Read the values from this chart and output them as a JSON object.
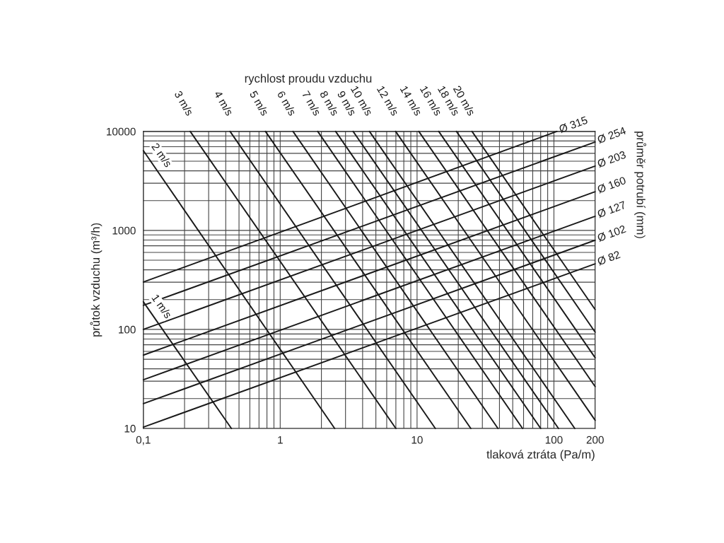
{
  "chart_data": {
    "type": "line",
    "log": "xy",
    "grid": true,
    "marker": "none",
    "line_style": "solid",
    "xlabel": "tlaková ztráta (Pa/m)",
    "ylabel": "průtok vzduchu (m³/h)",
    "annotations": [
      "rychlost proudu vzduchu",
      "průměr potrubí (mm)"
    ],
    "xlim": [
      0.1,
      200
    ],
    "ylim": [
      10,
      10000
    ],
    "xticks": [
      {
        "value": 0.1,
        "label": "0,1"
      },
      {
        "value": 0.2,
        "label": null
      },
      {
        "value": 0.3,
        "label": null
      },
      {
        "value": 0.4,
        "label": null
      },
      {
        "value": 0.5,
        "label": null
      },
      {
        "value": 0.6,
        "label": null
      },
      {
        "value": 0.7,
        "label": null
      },
      {
        "value": 0.8,
        "label": null
      },
      {
        "value": 0.9,
        "label": null
      },
      1,
      {
        "value": 2,
        "label": null
      },
      {
        "value": 3,
        "label": null
      },
      {
        "value": 4,
        "label": null
      },
      {
        "value": 5,
        "label": null
      },
      {
        "value": 6,
        "label": null
      },
      {
        "value": 7,
        "label": null
      },
      {
        "value": 8,
        "label": null
      },
      {
        "value": 9,
        "label": null
      },
      10,
      {
        "value": 20,
        "label": null
      },
      {
        "value": 30,
        "label": null
      },
      {
        "value": 40,
        "label": null
      },
      {
        "value": 50,
        "label": null
      },
      {
        "value": 60,
        "label": null
      },
      {
        "value": 70,
        "label": null
      },
      {
        "value": 80,
        "label": null
      },
      {
        "value": 90,
        "label": null
      },
      100,
      200
    ],
    "yticks": [
      10,
      {
        "value": 20,
        "label": null
      },
      {
        "value": 30,
        "label": null
      },
      {
        "value": 40,
        "label": null
      },
      {
        "value": 50,
        "label": null
      },
      {
        "value": 60,
        "label": null
      },
      {
        "value": 70,
        "label": null
      },
      {
        "value": 80,
        "label": null
      },
      {
        "value": 90,
        "label": null
      },
      100,
      {
        "value": 200,
        "label": null
      },
      {
        "value": 300,
        "label": null
      },
      {
        "value": 400,
        "label": null
      },
      {
        "value": 500,
        "label": null
      },
      {
        "value": 600,
        "label": null
      },
      {
        "value": 700,
        "label": null
      },
      {
        "value": 800,
        "label": null
      },
      {
        "value": 900,
        "label": null
      },
      1000,
      {
        "value": 2000,
        "label": null
      },
      {
        "value": 3000,
        "label": null
      },
      {
        "value": 4000,
        "label": null
      },
      {
        "value": 5000,
        "label": null
      },
      {
        "value": 6000,
        "label": null
      },
      {
        "value": 7000,
        "label": null
      },
      {
        "value": 8000,
        "label": null
      },
      {
        "value": 9000,
        "label": null
      },
      10000
    ],
    "series": [
      {
        "name": "1 m/s",
        "color": "#1a1a1a",
        "x": [
          0.1,
          0.44
        ],
        "values": [
          190,
          10
        ]
      },
      {
        "name": "2 m/s",
        "color": "#1a1a1a",
        "x": [
          0.1,
          2.5
        ],
        "values": [
          6400,
          10
        ]
      },
      {
        "name": "3 m/s",
        "color": "#1a1a1a",
        "x": [
          0.22,
          7.0
        ],
        "values": [
          10000,
          10
        ]
      },
      {
        "name": "4 m/s",
        "color": "#1a1a1a",
        "x": [
          0.43,
          13.6
        ],
        "values": [
          10000,
          10
        ]
      },
      {
        "name": "5 m/s",
        "color": "#1a1a1a",
        "x": [
          0.78,
          24.7
        ],
        "values": [
          10000,
          10
        ]
      },
      {
        "name": "6 m/s",
        "color": "#1a1a1a",
        "x": [
          1.24,
          39
        ],
        "values": [
          10000,
          10
        ]
      },
      {
        "name": "7 m/s",
        "color": "#1a1a1a",
        "x": [
          1.88,
          59
        ],
        "values": [
          10000,
          10
        ]
      },
      {
        "name": "8 m/s",
        "color": "#1a1a1a",
        "x": [
          2.54,
          80
        ],
        "values": [
          10000,
          10
        ]
      },
      {
        "name": "9 m/s",
        "color": "#1a1a1a",
        "x": [
          3.41,
          108
        ],
        "values": [
          10000,
          10
        ]
      },
      {
        "name": "10 m/s",
        "color": "#1a1a1a",
        "x": [
          4.49,
          142
        ],
        "values": [
          10000,
          10
        ]
      },
      {
        "name": "12 m/s",
        "color": "#1a1a1a",
        "x": [
          6.97,
          200
        ],
        "values": [
          10000,
          12.1
        ]
      },
      {
        "name": "14 m/s",
        "color": "#1a1a1a",
        "x": [
          10.3,
          200
        ],
        "values": [
          10000,
          26.5
        ]
      },
      {
        "name": "16 m/s",
        "color": "#1a1a1a",
        "x": [
          14.4,
          200
        ],
        "values": [
          10000,
          51.8
        ]
      },
      {
        "name": "18 m/s",
        "color": "#1a1a1a",
        "x": [
          19.4,
          200
        ],
        "values": [
          10000,
          94
        ]
      },
      {
        "name": "20 m/s",
        "color": "#1a1a1a",
        "x": [
          25.2,
          200
        ],
        "values": [
          10000,
          159
        ]
      },
      {
        "name": "Ø 315",
        "color": "#1a1a1a",
        "x": [
          0.1,
          105
        ],
        "values": [
          301,
          10000
        ]
      },
      {
        "name": "Ø 254",
        "color": "#1a1a1a",
        "x": [
          0.1,
          200
        ],
        "values": [
          175,
          7820
        ]
      },
      {
        "name": "Ø 203",
        "color": "#1a1a1a",
        "x": [
          0.1,
          200
        ],
        "values": [
          100,
          4470
        ]
      },
      {
        "name": "Ø 160",
        "color": "#1a1a1a",
        "x": [
          0.1,
          200
        ],
        "values": [
          55,
          2460
        ]
      },
      {
        "name": "Ø 127",
        "color": "#1a1a1a",
        "x": [
          0.1,
          200
        ],
        "values": [
          31,
          1390
        ]
      },
      {
        "name": "Ø 102",
        "color": "#1a1a1a",
        "x": [
          0.1,
          200
        ],
        "values": [
          17.8,
          796
        ]
      },
      {
        "name": "Ø 82",
        "color": "#1a1a1a",
        "x": [
          0.1,
          200
        ],
        "values": [
          10.3,
          460
        ]
      }
    ]
  }
}
